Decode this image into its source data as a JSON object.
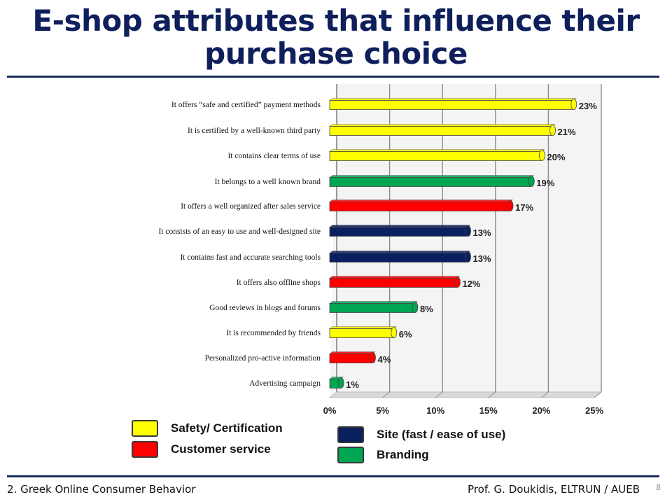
{
  "slide": {
    "title_line1": "E-shop attributes that influence their",
    "title_line2": "purchase choice",
    "footer_left": "2. Greek Online Consumer Behavior",
    "footer_right": "Prof. G. Doukidis, ELTRUN / AUEB",
    "page_number": "8"
  },
  "colors": {
    "safety": "#ffff00",
    "service": "#ff0000",
    "site": "#0a1f5e",
    "branding": "#00a651",
    "title": "#0f1f5c"
  },
  "legend": [
    {
      "key": "safety",
      "label": "Safety/ Certification"
    },
    {
      "key": "service",
      "label": "Customer service"
    },
    {
      "key": "site",
      "label": "Site (fast / ease of use)"
    },
    {
      "key": "branding",
      "label": "Branding"
    }
  ],
  "chart_data": {
    "type": "bar",
    "orientation": "horizontal",
    "title": "E-shop attributes that influence their purchase choice",
    "xlim": [
      0,
      25
    ],
    "x_ticks": [
      "0%",
      "5%",
      "10%",
      "15%",
      "20%",
      "25%"
    ],
    "grid": true,
    "categories": [
      "It offers “safe and certified” payment methods",
      "It is certified by a well-known third party",
      "It contains clear terms of use",
      "It belongs to a well known brand",
      "It offers a well organized after sales service",
      "It consists of an easy to use and well-designed site",
      "It contains fast and accurate searching tools",
      "It offers also offline shops",
      "Good reviews in blogs and forums",
      "It is recommended by friends",
      "Personalized pro-active information",
      "Advertising campaign"
    ],
    "values": [
      23,
      21,
      20,
      19,
      17,
      13,
      13,
      12,
      8,
      6,
      4,
      1
    ],
    "value_labels": [
      "23%",
      "21%",
      "20%",
      "19%",
      "17%",
      "13%",
      "13%",
      "12%",
      "8%",
      "6%",
      "4%",
      "1%"
    ],
    "groups": [
      "safety",
      "safety",
      "safety",
      "branding",
      "service",
      "site",
      "site",
      "service",
      "branding",
      "safety",
      "service",
      "branding"
    ]
  }
}
